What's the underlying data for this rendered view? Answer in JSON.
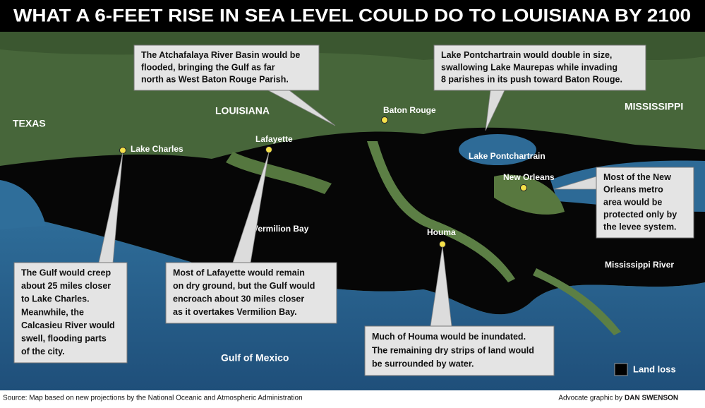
{
  "title": "WHAT A 6-FEET RISE IN SEA LEVEL COULD DO TO LOUISIANA BY 2100",
  "places": [
    "TEXAS",
    "LOUISIANA",
    "MISSISSIPPI",
    "Baton Rouge",
    "Lake Charles",
    "Lafayette",
    "Lake Pontchartrain",
    "New Orleans",
    "Vermilion Bay",
    "Houma",
    "Mississippi River",
    "Gulf of Mexico"
  ],
  "callouts": [
    {
      "lines": [
        "The Atchafalaya River Basin would be",
        "flooded, bringing the Gulf as far",
        "north as West Baton Rouge Parish."
      ]
    },
    {
      "lines": [
        "Lake Pontchartrain would double in size,",
        "swallowing Lake Maurepas while invading",
        "8 parishes in its push toward Baton Rouge."
      ]
    },
    {
      "lines": [
        "Most of the New",
        "Orleans metro",
        "area would be",
        "protected only by",
        "the levee system."
      ]
    },
    {
      "lines": [
        "The Gulf would creep",
        "about 25 miles closer",
        "to Lake Charles.",
        "Meanwhile, the",
        "Calcasieu River would",
        "swell, flooding parts",
        "of the city."
      ]
    },
    {
      "lines": [
        "Most of Lafayette would remain",
        "on dry ground, but the Gulf would",
        "encroach about 30 miles closer",
        "as it overtakes Vermilion Bay."
      ]
    },
    {
      "lines": [
        "Much of Houma would be inundated.",
        "The remaining dry strips of land would",
        "be surrounded by water."
      ]
    }
  ],
  "legend": {
    "label": "Land loss"
  },
  "footer": {
    "source": "Source: Map based on new projections by the National Oceanic and Atmospheric Administration",
    "credit": "Advocate graphic by",
    "author": "DAN SWENSON"
  }
}
